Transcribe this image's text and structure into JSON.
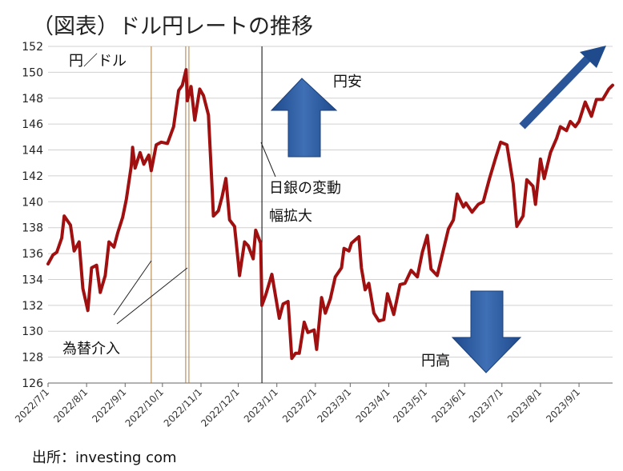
{
  "chart_data": {
    "type": "line",
    "title": "（図表）ドル円レートの推移",
    "unit_label": "円／ドル",
    "source": "出所：investing com",
    "ylim": [
      126,
      152
    ],
    "yticks": [
      126,
      128,
      130,
      132,
      134,
      136,
      138,
      140,
      142,
      144,
      146,
      148,
      150,
      152
    ],
    "x_ticks": [
      "2022/7/1",
      "2022/8/1",
      "2022/9/1",
      "2022/10/1",
      "2022/11/1",
      "2022/12/1",
      "2023/1/1",
      "2023/2/1",
      "2023/3/1",
      "2023/4/1",
      "2023/5/1",
      "2023/6/1",
      "2023/7/1",
      "2023/8/1",
      "2023/9/1"
    ],
    "xlim": [
      "2022-07-01",
      "2023-09-28"
    ],
    "grid": true,
    "series": [
      {
        "color": "#a01010",
        "points": [
          [
            "2022-07-01",
            135.2
          ],
          [
            "2022-07-05",
            135.9
          ],
          [
            "2022-07-08",
            136.1
          ],
          [
            "2022-07-12",
            137.2
          ],
          [
            "2022-07-14",
            138.9
          ],
          [
            "2022-07-19",
            138.2
          ],
          [
            "2022-07-22",
            136.2
          ],
          [
            "2022-07-26",
            136.9
          ],
          [
            "2022-07-29",
            133.3
          ],
          [
            "2022-08-02",
            131.6
          ],
          [
            "2022-08-05",
            134.9
          ],
          [
            "2022-08-09",
            135.1
          ],
          [
            "2022-08-12",
            133.0
          ],
          [
            "2022-08-16",
            134.3
          ],
          [
            "2022-08-19",
            136.9
          ],
          [
            "2022-08-23",
            136.5
          ],
          [
            "2022-08-26",
            137.6
          ],
          [
            "2022-08-30",
            138.8
          ],
          [
            "2022-09-02",
            140.2
          ],
          [
            "2022-09-06",
            142.8
          ],
          [
            "2022-09-07",
            144.2
          ],
          [
            "2022-09-09",
            142.6
          ],
          [
            "2022-09-13",
            143.8
          ],
          [
            "2022-09-16",
            142.9
          ],
          [
            "2022-09-20",
            143.6
          ],
          [
            "2022-09-22",
            142.4
          ],
          [
            "2022-09-26",
            144.4
          ],
          [
            "2022-09-30",
            144.6
          ],
          [
            "2022-10-05",
            144.5
          ],
          [
            "2022-10-10",
            145.8
          ],
          [
            "2022-10-14",
            148.6
          ],
          [
            "2022-10-17",
            149.0
          ],
          [
            "2022-10-20",
            150.2
          ],
          [
            "2022-10-21",
            147.8
          ],
          [
            "2022-10-24",
            148.9
          ],
          [
            "2022-10-27",
            146.3
          ],
          [
            "2022-10-31",
            148.7
          ],
          [
            "2022-11-03",
            148.2
          ],
          [
            "2022-11-07",
            146.7
          ],
          [
            "2022-11-10",
            140.9
          ],
          [
            "2022-11-11",
            138.9
          ],
          [
            "2022-11-15",
            139.3
          ],
          [
            "2022-11-18",
            140.4
          ],
          [
            "2022-11-21",
            141.8
          ],
          [
            "2022-11-24",
            138.6
          ],
          [
            "2022-11-28",
            138.1
          ],
          [
            "2022-12-01",
            135.3
          ],
          [
            "2022-12-02",
            134.3
          ],
          [
            "2022-12-06",
            136.9
          ],
          [
            "2022-12-09",
            136.6
          ],
          [
            "2022-12-13",
            135.6
          ],
          [
            "2022-12-15",
            137.8
          ],
          [
            "2022-12-19",
            136.8
          ],
          [
            "2022-12-20",
            132.0
          ],
          [
            "2022-12-23",
            132.8
          ],
          [
            "2022-12-28",
            134.4
          ],
          [
            "2023-01-03",
            131.0
          ],
          [
            "2023-01-06",
            132.1
          ],
          [
            "2023-01-10",
            132.3
          ],
          [
            "2023-01-13",
            127.9
          ],
          [
            "2023-01-16",
            128.3
          ],
          [
            "2023-01-19",
            128.3
          ],
          [
            "2023-01-23",
            130.7
          ],
          [
            "2023-01-26",
            129.9
          ],
          [
            "2023-01-31",
            130.1
          ],
          [
            "2023-02-02",
            128.6
          ],
          [
            "2023-02-06",
            132.6
          ],
          [
            "2023-02-09",
            131.4
          ],
          [
            "2023-02-13",
            132.5
          ],
          [
            "2023-02-17",
            134.2
          ],
          [
            "2023-02-22",
            134.9
          ],
          [
            "2023-02-24",
            136.4
          ],
          [
            "2023-02-28",
            136.2
          ],
          [
            "2023-03-02",
            136.8
          ],
          [
            "2023-03-08",
            137.3
          ],
          [
            "2023-03-10",
            134.9
          ],
          [
            "2023-03-13",
            133.2
          ],
          [
            "2023-03-16",
            133.7
          ],
          [
            "2023-03-20",
            131.4
          ],
          [
            "2023-03-24",
            130.8
          ],
          [
            "2023-03-28",
            130.9
          ],
          [
            "2023-03-31",
            132.9
          ],
          [
            "2023-04-05",
            131.3
          ],
          [
            "2023-04-10",
            133.6
          ],
          [
            "2023-04-14",
            133.7
          ],
          [
            "2023-04-19",
            134.7
          ],
          [
            "2023-04-24",
            134.2
          ],
          [
            "2023-04-28",
            136.1
          ],
          [
            "2023-05-02",
            137.4
          ],
          [
            "2023-05-05",
            134.8
          ],
          [
            "2023-05-10",
            134.3
          ],
          [
            "2023-05-15",
            136.3
          ],
          [
            "2023-05-19",
            137.9
          ],
          [
            "2023-05-23",
            138.6
          ],
          [
            "2023-05-26",
            140.6
          ],
          [
            "2023-05-31",
            139.6
          ],
          [
            "2023-06-02",
            139.9
          ],
          [
            "2023-06-07",
            139.2
          ],
          [
            "2023-06-12",
            139.8
          ],
          [
            "2023-06-16",
            140.0
          ],
          [
            "2023-06-21",
            141.8
          ],
          [
            "2023-06-26",
            143.4
          ],
          [
            "2023-06-30",
            144.6
          ],
          [
            "2023-07-05",
            144.4
          ],
          [
            "2023-07-10",
            141.4
          ],
          [
            "2023-07-13",
            138.1
          ],
          [
            "2023-07-18",
            138.9
          ],
          [
            "2023-07-21",
            141.7
          ],
          [
            "2023-07-26",
            141.2
          ],
          [
            "2023-07-28",
            139.8
          ],
          [
            "2023-08-01",
            143.3
          ],
          [
            "2023-08-04",
            141.8
          ],
          [
            "2023-08-09",
            143.8
          ],
          [
            "2023-08-14",
            144.9
          ],
          [
            "2023-08-17",
            145.8
          ],
          [
            "2023-08-22",
            145.5
          ],
          [
            "2023-08-25",
            146.2
          ],
          [
            "2023-08-29",
            145.8
          ],
          [
            "2023-09-01",
            146.2
          ],
          [
            "2023-09-06",
            147.7
          ],
          [
            "2023-09-11",
            146.6
          ],
          [
            "2023-09-15",
            147.9
          ],
          [
            "2023-09-20",
            147.9
          ],
          [
            "2023-09-25",
            148.7
          ],
          [
            "2023-09-28",
            149.0
          ]
        ]
      }
    ],
    "intervention_lines": [
      {
        "date": "2022-09-22",
        "color": "#b07a3a",
        "double": false
      },
      {
        "date": "2022-10-21",
        "color": "#b07a3a",
        "double": true
      }
    ],
    "boj_line": {
      "date": "2022-12-20",
      "color": "#000000"
    },
    "annotations": {
      "intervention": "為替介入",
      "boj_line1": "日銀の変動",
      "boj_line2": "幅拡大",
      "yen_weak": "円安",
      "yen_strong": "円高"
    },
    "colors": {
      "arrow_blue": "#2a5699",
      "arrow_blue_light": "#3f6fb5",
      "line": "#a01010"
    }
  }
}
